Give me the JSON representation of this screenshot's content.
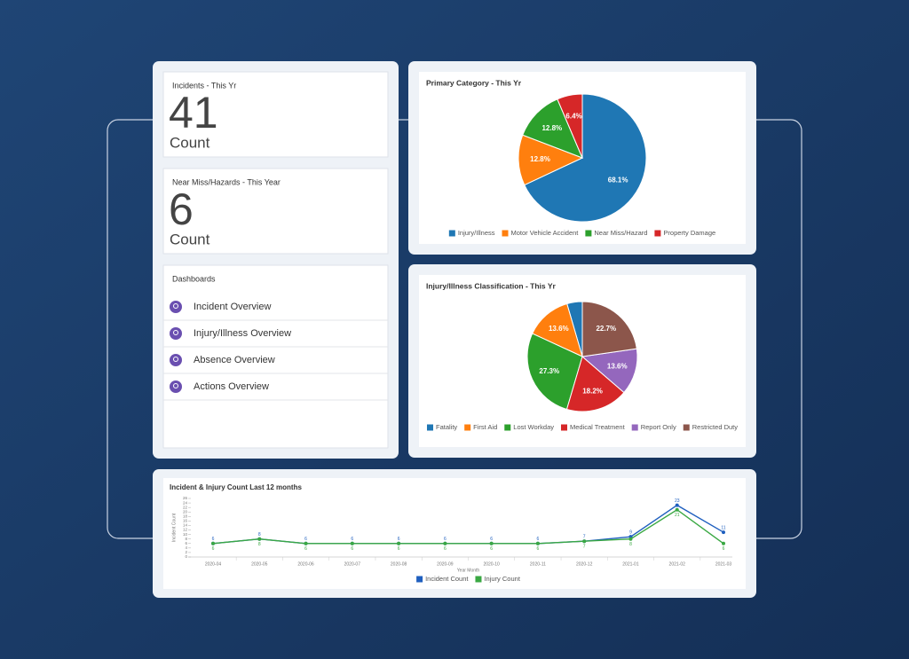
{
  "cards": [
    {
      "title": "Incidents - This Yr",
      "value": 41,
      "unit": "Count"
    },
    {
      "title": "Near Miss/Hazards - This Year",
      "value": 6,
      "unit": "Count"
    }
  ],
  "dashboards": {
    "title": "Dashboards",
    "items": [
      "Incident Overview",
      "Injury/Illness Overview",
      "Absence Overview",
      "Actions Overview"
    ]
  },
  "chart_data": [
    {
      "type": "pie",
      "title": "Primary Category - This Yr",
      "categories": [
        "Injury/Illness",
        "Motor Vehicle Accident",
        "Near Miss/Hazard",
        "Property Damage"
      ],
      "values": [
        68.1,
        12.8,
        12.8,
        6.4
      ],
      "value_labels": [
        "68.1%",
        "12.8%",
        "12.8%",
        "6.4%"
      ],
      "colors": [
        "#1f77b4",
        "#ff7f0e",
        "#2ca02c",
        "#d62728"
      ],
      "direction": "clockwise",
      "legend": "bottom"
    },
    {
      "type": "pie",
      "title": "Injury/Illness Classification - This Yr",
      "categories": [
        "Fatality",
        "First Aid",
        "Lost Workday",
        "Medical Treatment",
        "Report Only",
        "Restricted Duty"
      ],
      "values": [
        4.5,
        13.6,
        27.3,
        18.2,
        13.6,
        22.7
      ],
      "value_labels": [
        null,
        "13.6%",
        "27.3%",
        "18.2%",
        "13.6%",
        "22.7%"
      ],
      "colors": [
        "#1f77b4",
        "#ff7f0e",
        "#2ca02c",
        "#d62728",
        "#9467bd",
        "#8c564b"
      ],
      "direction": "counterclockwise",
      "legend": "bottom"
    },
    {
      "type": "line",
      "title": "Incident & Injury Count Last 12 months",
      "x_label": "Year Month",
      "y_label": "Incident Count",
      "categories": [
        "2020-04",
        "2020-05",
        "2020-06",
        "2020-07",
        "2020-08",
        "2020-09",
        "2020-10",
        "2020-11",
        "2020-12",
        "2021-01",
        "2021-02",
        "2021-03"
      ],
      "series": [
        {
          "name": "Incident Count",
          "color": "#1f5fbf",
          "values": [
            6,
            8,
            6,
            6,
            6,
            6,
            6,
            6,
            7,
            9,
            23,
            11
          ]
        },
        {
          "name": "Injury Count",
          "color": "#3aa843",
          "values": [
            6,
            8,
            6,
            6,
            6,
            6,
            6,
            6,
            7,
            8,
            21,
            6
          ]
        }
      ],
      "ylim": [
        0,
        26
      ],
      "yticks": [
        0,
        2,
        4,
        6,
        8,
        10,
        12,
        14,
        16,
        18,
        20,
        22,
        24,
        26
      ],
      "grid": false,
      "legend": "bottom"
    }
  ]
}
